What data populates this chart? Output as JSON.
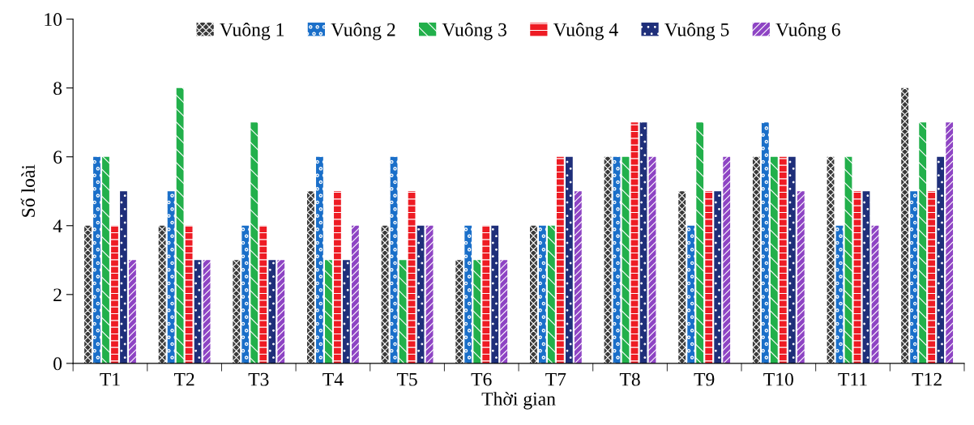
{
  "chart_data": {
    "type": "bar",
    "xlabel": "Thời gian",
    "ylabel": "Số loài",
    "categories": [
      "T1",
      "T2",
      "T3",
      "T4",
      "T5",
      "T6",
      "T7",
      "T8",
      "T9",
      "T10",
      "T11",
      "T12"
    ],
    "series": [
      {
        "name": "Vuông 1",
        "color": "#3a3a3a",
        "values": [
          4,
          4,
          3,
          5,
          4,
          3,
          4,
          6,
          5,
          6,
          6,
          8
        ]
      },
      {
        "name": "Vuông 2",
        "color": "#1a6fc9",
        "values": [
          6,
          5,
          4,
          6,
          6,
          4,
          4,
          6,
          4,
          7,
          4,
          5
        ]
      },
      {
        "name": "Vuông 3",
        "color": "#22b04b",
        "values": [
          6,
          8,
          7,
          3,
          3,
          3,
          4,
          6,
          7,
          6,
          6,
          7
        ]
      },
      {
        "name": "Vuông 4",
        "color": "#ee1c24",
        "values": [
          4,
          4,
          4,
          5,
          5,
          4,
          6,
          7,
          5,
          6,
          5,
          5
        ]
      },
      {
        "name": "Vuông 5",
        "color": "#1f2f7a",
        "values": [
          5,
          3,
          3,
          3,
          4,
          4,
          6,
          7,
          5,
          6,
          5,
          6
        ]
      },
      {
        "name": "Vuông 6",
        "color": "#8e44c4",
        "values": [
          3,
          3,
          3,
          4,
          4,
          3,
          5,
          6,
          6,
          5,
          4,
          7
        ]
      }
    ],
    "ylim": [
      0,
      10
    ],
    "yticks": [
      0,
      2,
      4,
      6,
      8,
      10
    ],
    "grid": false,
    "legend": "top"
  }
}
